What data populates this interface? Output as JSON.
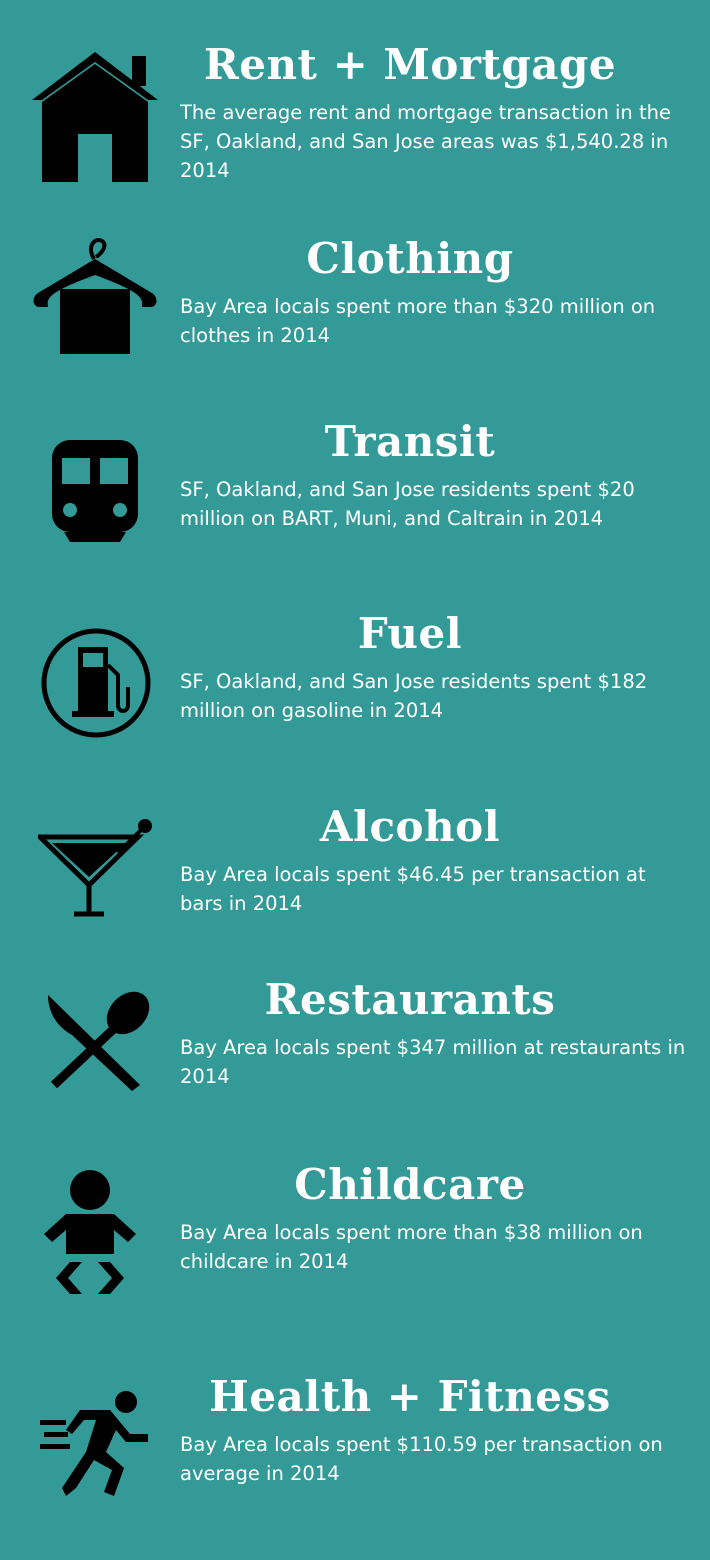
{
  "items": [
    {
      "title": "Rent + Mortgage",
      "text": "The average rent and mortgage transaction in the SF, Oakland, and San Jose areas was $1,540.28 in 2014"
    },
    {
      "title": "Clothing",
      "text": "Bay Area locals spent more than $320 million on clothes in 2014"
    },
    {
      "title": "Transit",
      "text": "SF, Oakland, and San Jose residents spent $20 million on BART, Muni, and Caltrain in 2014"
    },
    {
      "title": "Fuel",
      "text": "SF, Oakland, and San Jose residents spent $182 million on gasoline in 2014"
    },
    {
      "title": "Alcohol",
      "text": "Bay Area locals spent $46.45 per transaction at bars in 2014"
    },
    {
      "title": "Restaurants",
      "text": "Bay Area locals spent $347 million at restaurants in 2014"
    },
    {
      "title": "Childcare",
      "text": "Bay Area locals spent more than $38 million on childcare in 2014"
    },
    {
      "title": "Health + Fitness",
      "text": "Bay Area locals spent $110.59 per transaction on average in 2014"
    }
  ]
}
